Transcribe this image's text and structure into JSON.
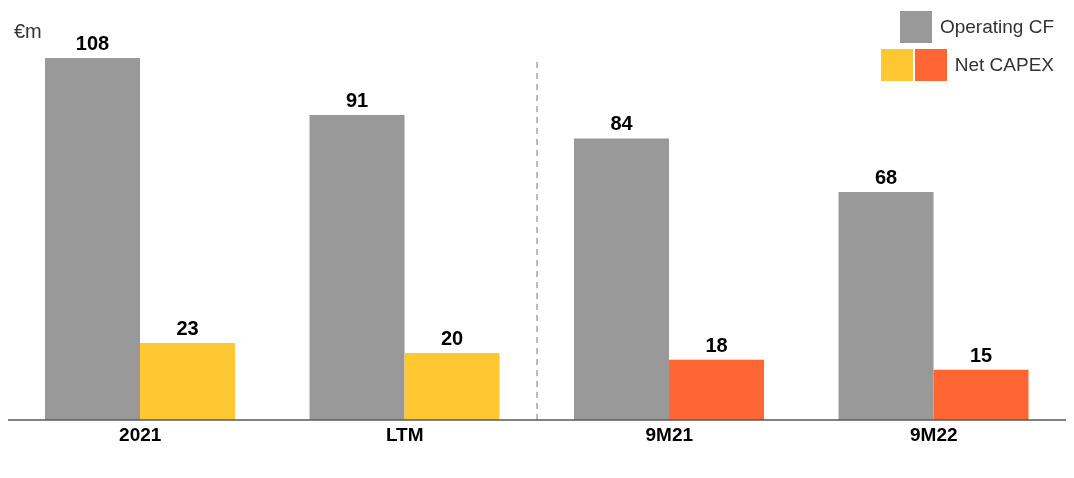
{
  "chart_data": {
    "type": "bar",
    "ylabel": "€m",
    "categories": [
      "2021",
      "LTM",
      "9M21",
      "9M22"
    ],
    "series": [
      {
        "name": "Operating CF",
        "color": "#999999",
        "values": [
          108,
          91,
          84,
          68
        ]
      },
      {
        "name": "Net CAPEX",
        "colors": [
          "#ffc832",
          "#ffc832",
          "#ff6633",
          "#ff6633"
        ],
        "values": [
          23,
          20,
          18,
          15
        ]
      }
    ],
    "data_labels": true,
    "legend": "top right",
    "grid": false
  }
}
